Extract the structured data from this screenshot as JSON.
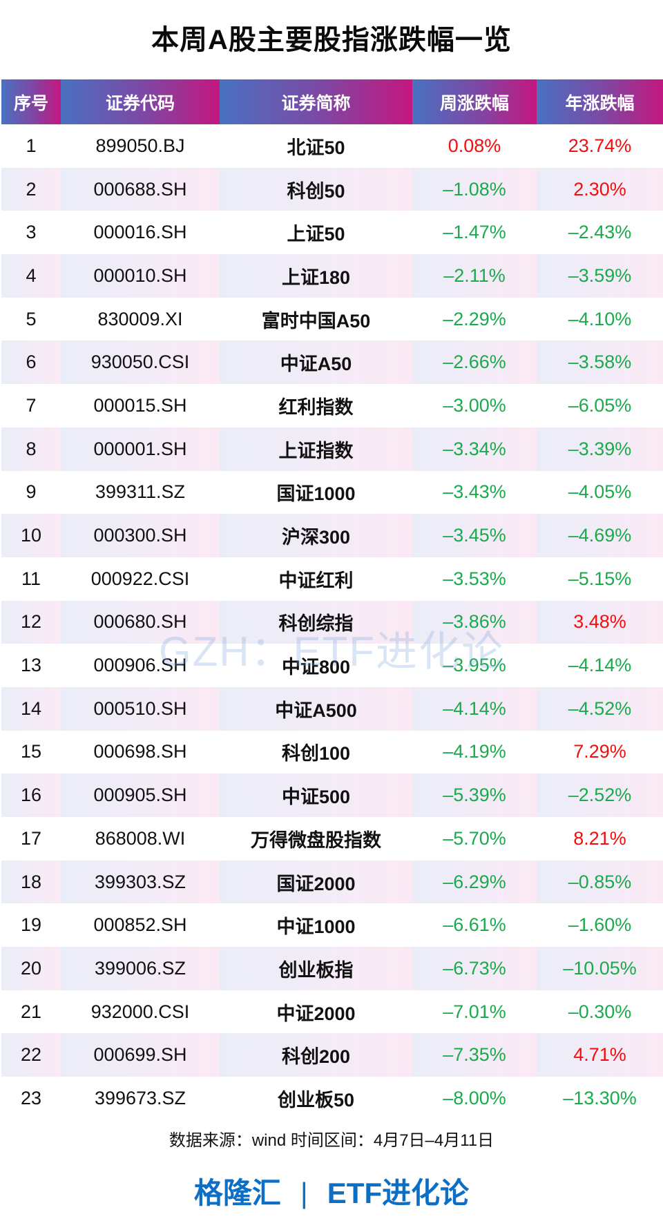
{
  "title": "本周A股主要股指涨跌幅一览",
  "colors": {
    "up": "#f50c0c",
    "down": "#1aaa4c",
    "header_start": "#4a71c1",
    "header_end": "#c4177f",
    "brand": "#0d6ec5"
  },
  "table": {
    "headers": [
      "序号",
      "证券代码",
      "证券简称",
      "周涨跌幅",
      "年涨跌幅"
    ],
    "rows": [
      {
        "no": "1",
        "code": "899050.BJ",
        "name": "北证50",
        "week": "0.08%",
        "year": "23.74%"
      },
      {
        "no": "2",
        "code": "000688.SH",
        "name": "科创50",
        "week": "-1.08%",
        "year": "2.30%"
      },
      {
        "no": "3",
        "code": "000016.SH",
        "name": "上证50",
        "week": "-1.47%",
        "year": "-2.43%"
      },
      {
        "no": "4",
        "code": "000010.SH",
        "name": "上证180",
        "week": "-2.11%",
        "year": "-3.59%"
      },
      {
        "no": "5",
        "code": "830009.XI",
        "name": "富时中国A50",
        "week": "-2.29%",
        "year": "-4.10%"
      },
      {
        "no": "6",
        "code": "930050.CSI",
        "name": "中证A50",
        "week": "-2.66%",
        "year": "-3.58%"
      },
      {
        "no": "7",
        "code": "000015.SH",
        "name": "红利指数",
        "week": "-3.00%",
        "year": "-6.05%"
      },
      {
        "no": "8",
        "code": "000001.SH",
        "name": "上证指数",
        "week": "-3.34%",
        "year": "-3.39%"
      },
      {
        "no": "9",
        "code": "399311.SZ",
        "name": "国证1000",
        "week": "-3.43%",
        "year": "-4.05%"
      },
      {
        "no": "10",
        "code": "000300.SH",
        "name": "沪深300",
        "week": "-3.45%",
        "year": "-4.69%"
      },
      {
        "no": "11",
        "code": "000922.CSI",
        "name": "中证红利",
        "week": "-3.53%",
        "year": "-5.15%"
      },
      {
        "no": "12",
        "code": "000680.SH",
        "name": "科创综指",
        "week": "-3.86%",
        "year": "3.48%"
      },
      {
        "no": "13",
        "code": "000906.SH",
        "name": "中证800",
        "week": "-3.95%",
        "year": "-4.14%"
      },
      {
        "no": "14",
        "code": "000510.SH",
        "name": "中证A500",
        "week": "-4.14%",
        "year": "-4.52%"
      },
      {
        "no": "15",
        "code": "000698.SH",
        "name": "科创100",
        "week": "-4.19%",
        "year": "7.29%"
      },
      {
        "no": "16",
        "code": "000905.SH",
        "name": "中证500",
        "week": "-5.39%",
        "year": "-2.52%"
      },
      {
        "no": "17",
        "code": "868008.WI",
        "name": "万得微盘股指数",
        "week": "-5.70%",
        "year": "8.21%"
      },
      {
        "no": "18",
        "code": "399303.SZ",
        "name": "国证2000",
        "week": "-6.29%",
        "year": "-0.85%"
      },
      {
        "no": "19",
        "code": "000852.SH",
        "name": "中证1000",
        "week": "-6.61%",
        "year": "-1.60%"
      },
      {
        "no": "20",
        "code": "399006.SZ",
        "name": "创业板指",
        "week": "-6.73%",
        "year": "-10.05%"
      },
      {
        "no": "21",
        "code": "932000.CSI",
        "name": "中证2000",
        "week": "-7.01%",
        "year": "-0.30%"
      },
      {
        "no": "22",
        "code": "000699.SH",
        "name": "科创200",
        "week": "-7.35%",
        "year": "4.71%"
      },
      {
        "no": "23",
        "code": "399673.SZ",
        "name": "创业板50",
        "week": "-8.00%",
        "year": "-13.30%"
      }
    ]
  },
  "watermark": "GZH：ETF进化论",
  "footer": {
    "source": "数据来源：wind 时间区间：4月7日–4月11日",
    "brand_left": "格隆汇",
    "brand_sep": "|",
    "brand_right": "ETF进化论"
  },
  "chart_data": {
    "type": "table",
    "title": "本周A股主要股指涨跌幅一览",
    "columns": [
      "序号",
      "证券代码",
      "证券简称",
      "周涨跌幅",
      "年涨跌幅"
    ],
    "categories": [
      "北证50",
      "科创50",
      "上证50",
      "上证180",
      "富时中国A50",
      "中证A50",
      "红利指数",
      "上证指数",
      "国证1000",
      "沪深300",
      "中证红利",
      "科创综指",
      "中证800",
      "中证A500",
      "科创100",
      "中证500",
      "万得微盘股指数",
      "国证2000",
      "中证1000",
      "创业板指",
      "中证2000",
      "科创200",
      "创业板50"
    ],
    "series": [
      {
        "name": "周涨跌幅(%)",
        "values": [
          0.08,
          -1.08,
          -1.47,
          -2.11,
          -2.29,
          -2.66,
          -3.0,
          -3.34,
          -3.43,
          -3.45,
          -3.53,
          -3.86,
          -3.95,
          -4.14,
          -4.19,
          -5.39,
          -5.7,
          -6.29,
          -6.61,
          -6.73,
          -7.01,
          -7.35,
          -8.0
        ]
      },
      {
        "name": "年涨跌幅(%)",
        "values": [
          23.74,
          2.3,
          -2.43,
          -3.59,
          -4.1,
          -3.58,
          -6.05,
          -3.39,
          -4.05,
          -4.69,
          -5.15,
          3.48,
          -4.14,
          -4.52,
          7.29,
          -2.52,
          8.21,
          -0.85,
          -1.6,
          -10.05,
          -0.3,
          4.71,
          -13.3
        ]
      }
    ],
    "codes": [
      "899050.BJ",
      "000688.SH",
      "000016.SH",
      "000010.SH",
      "830009.XI",
      "930050.CSI",
      "000015.SH",
      "000001.SH",
      "399311.SZ",
      "000300.SH",
      "000922.CSI",
      "000680.SH",
      "000906.SH",
      "000510.SH",
      "000698.SH",
      "000905.SH",
      "868008.WI",
      "399303.SZ",
      "000852.SH",
      "399006.SZ",
      "932000.CSI",
      "000699.SH",
      "399673.SZ"
    ],
    "source": "wind",
    "period": "4月7日–4月11日"
  }
}
